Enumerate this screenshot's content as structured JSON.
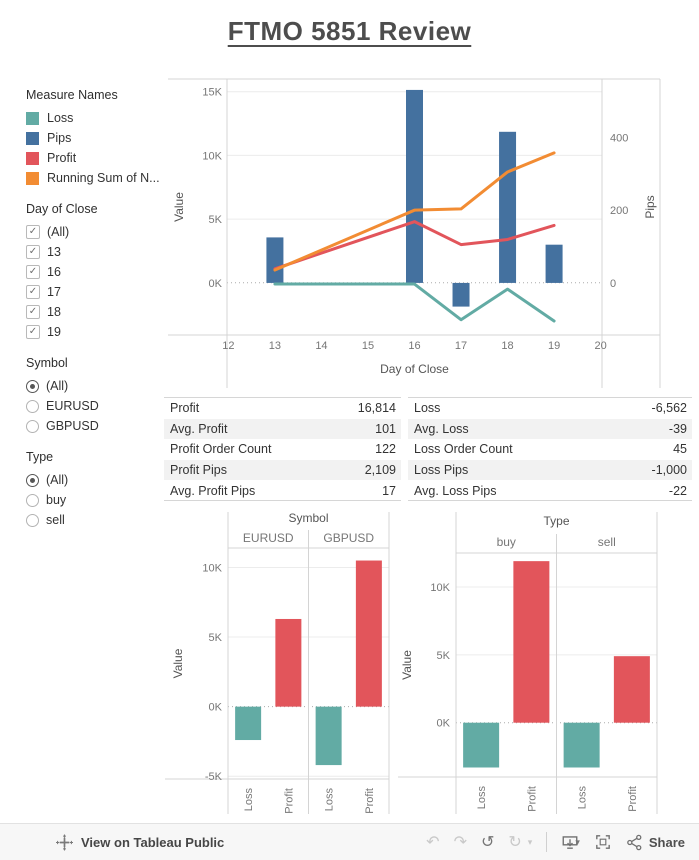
{
  "title": "FTMO 5851 Review",
  "sidebar": {
    "legend": {
      "title": "Measure Names",
      "items": [
        {
          "label": "Loss",
          "color": "#62aba4"
        },
        {
          "label": "Pips",
          "color": "#44719f"
        },
        {
          "label": "Profit",
          "color": "#e2555b"
        },
        {
          "label": "Running Sum of N...",
          "color": "#f28c33"
        }
      ]
    },
    "day_filter": {
      "title": "Day of Close",
      "options": [
        {
          "label": "(All)",
          "checked": true
        },
        {
          "label": "13",
          "checked": true
        },
        {
          "label": "16",
          "checked": true
        },
        {
          "label": "17",
          "checked": true
        },
        {
          "label": "18",
          "checked": true
        },
        {
          "label": "19",
          "checked": true
        }
      ]
    },
    "symbol_filter": {
      "title": "Symbol",
      "options": [
        {
          "label": "(All)",
          "selected": true
        },
        {
          "label": "EURUSD",
          "selected": false
        },
        {
          "label": "GBPUSD",
          "selected": false
        }
      ]
    },
    "type_filter": {
      "title": "Type",
      "options": [
        {
          "label": "(All)",
          "selected": true
        },
        {
          "label": "buy",
          "selected": false
        },
        {
          "label": "sell",
          "selected": false
        }
      ]
    }
  },
  "summary_table": {
    "rows": [
      {
        "left_label": "Profit",
        "left_value": "16,814",
        "right_label": "Loss",
        "right_value": "-6,562",
        "shaded": false
      },
      {
        "left_label": "Avg. Profit",
        "left_value": "101",
        "right_label": "Avg. Loss",
        "right_value": "-39",
        "shaded": true
      },
      {
        "left_label": "Profit Order Count",
        "left_value": "122",
        "right_label": "Loss Order Count",
        "right_value": "45",
        "shaded": false
      },
      {
        "left_label": "Profit Pips",
        "left_value": "2,109",
        "right_label": "Loss Pips",
        "right_value": "-1,000",
        "shaded": true
      },
      {
        "left_label": "Avg. Profit Pips",
        "left_value": "17",
        "right_label": "Avg. Loss Pips",
        "right_value": "-22",
        "shaded": false
      }
    ]
  },
  "chart_data": [
    {
      "id": "main_chart",
      "type": "combo",
      "title": "",
      "xlabel": "Day of Close",
      "x_values": [
        13,
        16,
        17,
        18,
        19
      ],
      "x_ticks": [
        12,
        13,
        14,
        15,
        16,
        17,
        18,
        19,
        20
      ],
      "x_range": [
        11.97,
        20.03
      ],
      "left_axis": {
        "label": "Value",
        "ticks": [
          15000,
          10000,
          5000,
          0
        ],
        "tick_labels": [
          "15K",
          "10K",
          "5K",
          "0K"
        ],
        "range": [
          -4100,
          16000
        ]
      },
      "right_axis": {
        "label": "Pips",
        "ticks": [
          400,
          200,
          0
        ],
        "tick_labels": [
          "400",
          "200",
          "0"
        ],
        "range": [
          -143,
          560
        ]
      },
      "bar_series": {
        "name": "Pips",
        "axis": "right",
        "color": "#44719f",
        "values": [
          125,
          530,
          -65,
          415,
          105
        ]
      },
      "line_series": [
        {
          "name": "Loss",
          "axis": "left",
          "color": "#62aba4",
          "values": [
            -100,
            -100,
            -2900,
            -500,
            -3000
          ]
        },
        {
          "name": "Profit",
          "axis": "left",
          "color": "#e2555b",
          "values": [
            1100,
            4800,
            3000,
            3400,
            4500
          ]
        },
        {
          "name": "Running Sum of Net",
          "axis": "left",
          "color": "#f28c33",
          "values": [
            1000,
            5700,
            5800,
            8700,
            10200
          ]
        }
      ],
      "grid": "horizontal",
      "zero_line": "dotted"
    },
    {
      "id": "symbol_chart",
      "type": "bar",
      "title": "Symbol",
      "groups": [
        "EURUSD",
        "GBPUSD"
      ],
      "categories": [
        "Loss",
        "Profit"
      ],
      "series_colors": {
        "Loss": "#62aba4",
        "Profit": "#e2555b"
      },
      "values": {
        "EURUSD": {
          "Loss": -2400,
          "Profit": 6300
        },
        "GBPUSD": {
          "Loss": -4200,
          "Profit": 10500
        }
      },
      "ylabel": "Value",
      "y_ticks": [
        10000,
        5000,
        0,
        -5000
      ],
      "y_tick_labels": [
        "10K",
        "5K",
        "0K",
        "-5K"
      ],
      "y_range": [
        -5200,
        11400
      ]
    },
    {
      "id": "type_chart",
      "type": "bar",
      "title": "Type",
      "groups": [
        "buy",
        "sell"
      ],
      "categories": [
        "Loss",
        "Profit"
      ],
      "series_colors": {
        "Loss": "#62aba4",
        "Profit": "#e2555b"
      },
      "values": {
        "buy": {
          "Loss": -3300,
          "Profit": 11900
        },
        "sell": {
          "Loss": -3300,
          "Profit": 4900
        }
      },
      "ylabel": "Value",
      "y_ticks": [
        10000,
        5000,
        0
      ],
      "y_tick_labels": [
        "10K",
        "5K",
        "0K"
      ],
      "y_range": [
        -4000,
        12500
      ]
    }
  ],
  "footer": {
    "view_label": "View on Tableau Public",
    "share_label": "Share",
    "icons": [
      "tableau-logo",
      "undo",
      "redo",
      "revert",
      "replay",
      "caret-down",
      "download",
      "fullscreen",
      "share"
    ]
  }
}
